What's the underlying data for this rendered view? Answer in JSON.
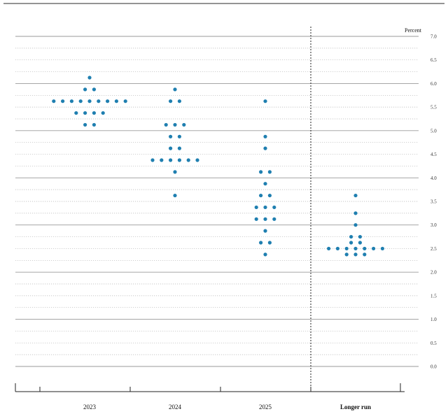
{
  "chart_data": {
    "type": "scatter",
    "title": "",
    "unit_label": "Percent",
    "categories": [
      "2023",
      "2024",
      "2025",
      "Longer run"
    ],
    "ylim": [
      0.0,
      7.0
    ],
    "y_ticks": [
      "0.0",
      "0.5",
      "1.0",
      "1.5",
      "2.0",
      "2.5",
      "3.0",
      "3.5",
      "4.0",
      "4.5",
      "5.0",
      "5.5",
      "6.0",
      "6.5",
      "7.0"
    ],
    "grid": true,
    "dot_color": "#1f7fb0",
    "series": [
      {
        "category": "2023",
        "points": [
          {
            "y": 6.125,
            "count": 1
          },
          {
            "y": 5.875,
            "count": 2
          },
          {
            "y": 5.625,
            "count": 9
          },
          {
            "y": 5.375,
            "count": 4
          },
          {
            "y": 5.125,
            "count": 2
          }
        ]
      },
      {
        "category": "2024",
        "points": [
          {
            "y": 5.875,
            "count": 1
          },
          {
            "y": 5.625,
            "count": 2
          },
          {
            "y": 5.125,
            "count": 3
          },
          {
            "y": 4.875,
            "count": 2
          },
          {
            "y": 4.625,
            "count": 2
          },
          {
            "y": 4.375,
            "count": 6
          },
          {
            "y": 4.125,
            "count": 1
          },
          {
            "y": 3.625,
            "count": 1
          }
        ]
      },
      {
        "category": "2025",
        "points": [
          {
            "y": 5.625,
            "count": 1
          },
          {
            "y": 4.875,
            "count": 1
          },
          {
            "y": 4.625,
            "count": 1
          },
          {
            "y": 4.125,
            "count": 2
          },
          {
            "y": 3.875,
            "count": 1
          },
          {
            "y": 3.625,
            "count": 2
          },
          {
            "y": 3.375,
            "count": 3
          },
          {
            "y": 3.125,
            "count": 3
          },
          {
            "y": 2.875,
            "count": 1
          },
          {
            "y": 2.625,
            "count": 2
          },
          {
            "y": 2.375,
            "count": 1
          }
        ]
      },
      {
        "category": "Longer run",
        "points": [
          {
            "y": 3.625,
            "count": 1
          },
          {
            "y": 3.25,
            "count": 1
          },
          {
            "y": 3.0,
            "count": 1
          },
          {
            "y": 2.75,
            "count": 2
          },
          {
            "y": 2.625,
            "count": 2
          },
          {
            "y": 2.5,
            "count": 7
          },
          {
            "y": 2.375,
            "count": 3
          }
        ]
      }
    ]
  }
}
